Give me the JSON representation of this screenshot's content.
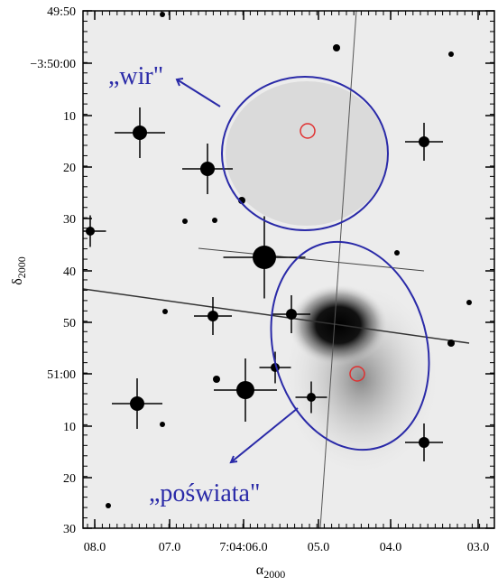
{
  "figure": {
    "x_axis": {
      "symbol": "α",
      "subscript": "2000",
      "ticks": [
        "08.0",
        "07.0",
        "7:04:06.0",
        "05.0",
        "04.0",
        "03.0"
      ]
    },
    "y_axis": {
      "symbol": "δ",
      "subscript": "2000",
      "ticks": [
        "49:50",
        "−3:50:00",
        "10",
        "20",
        "30",
        "40",
        "50",
        "51:00",
        "10",
        "20",
        "30"
      ]
    },
    "annotations": [
      "„wir\"",
      "„poświata\""
    ]
  }
}
